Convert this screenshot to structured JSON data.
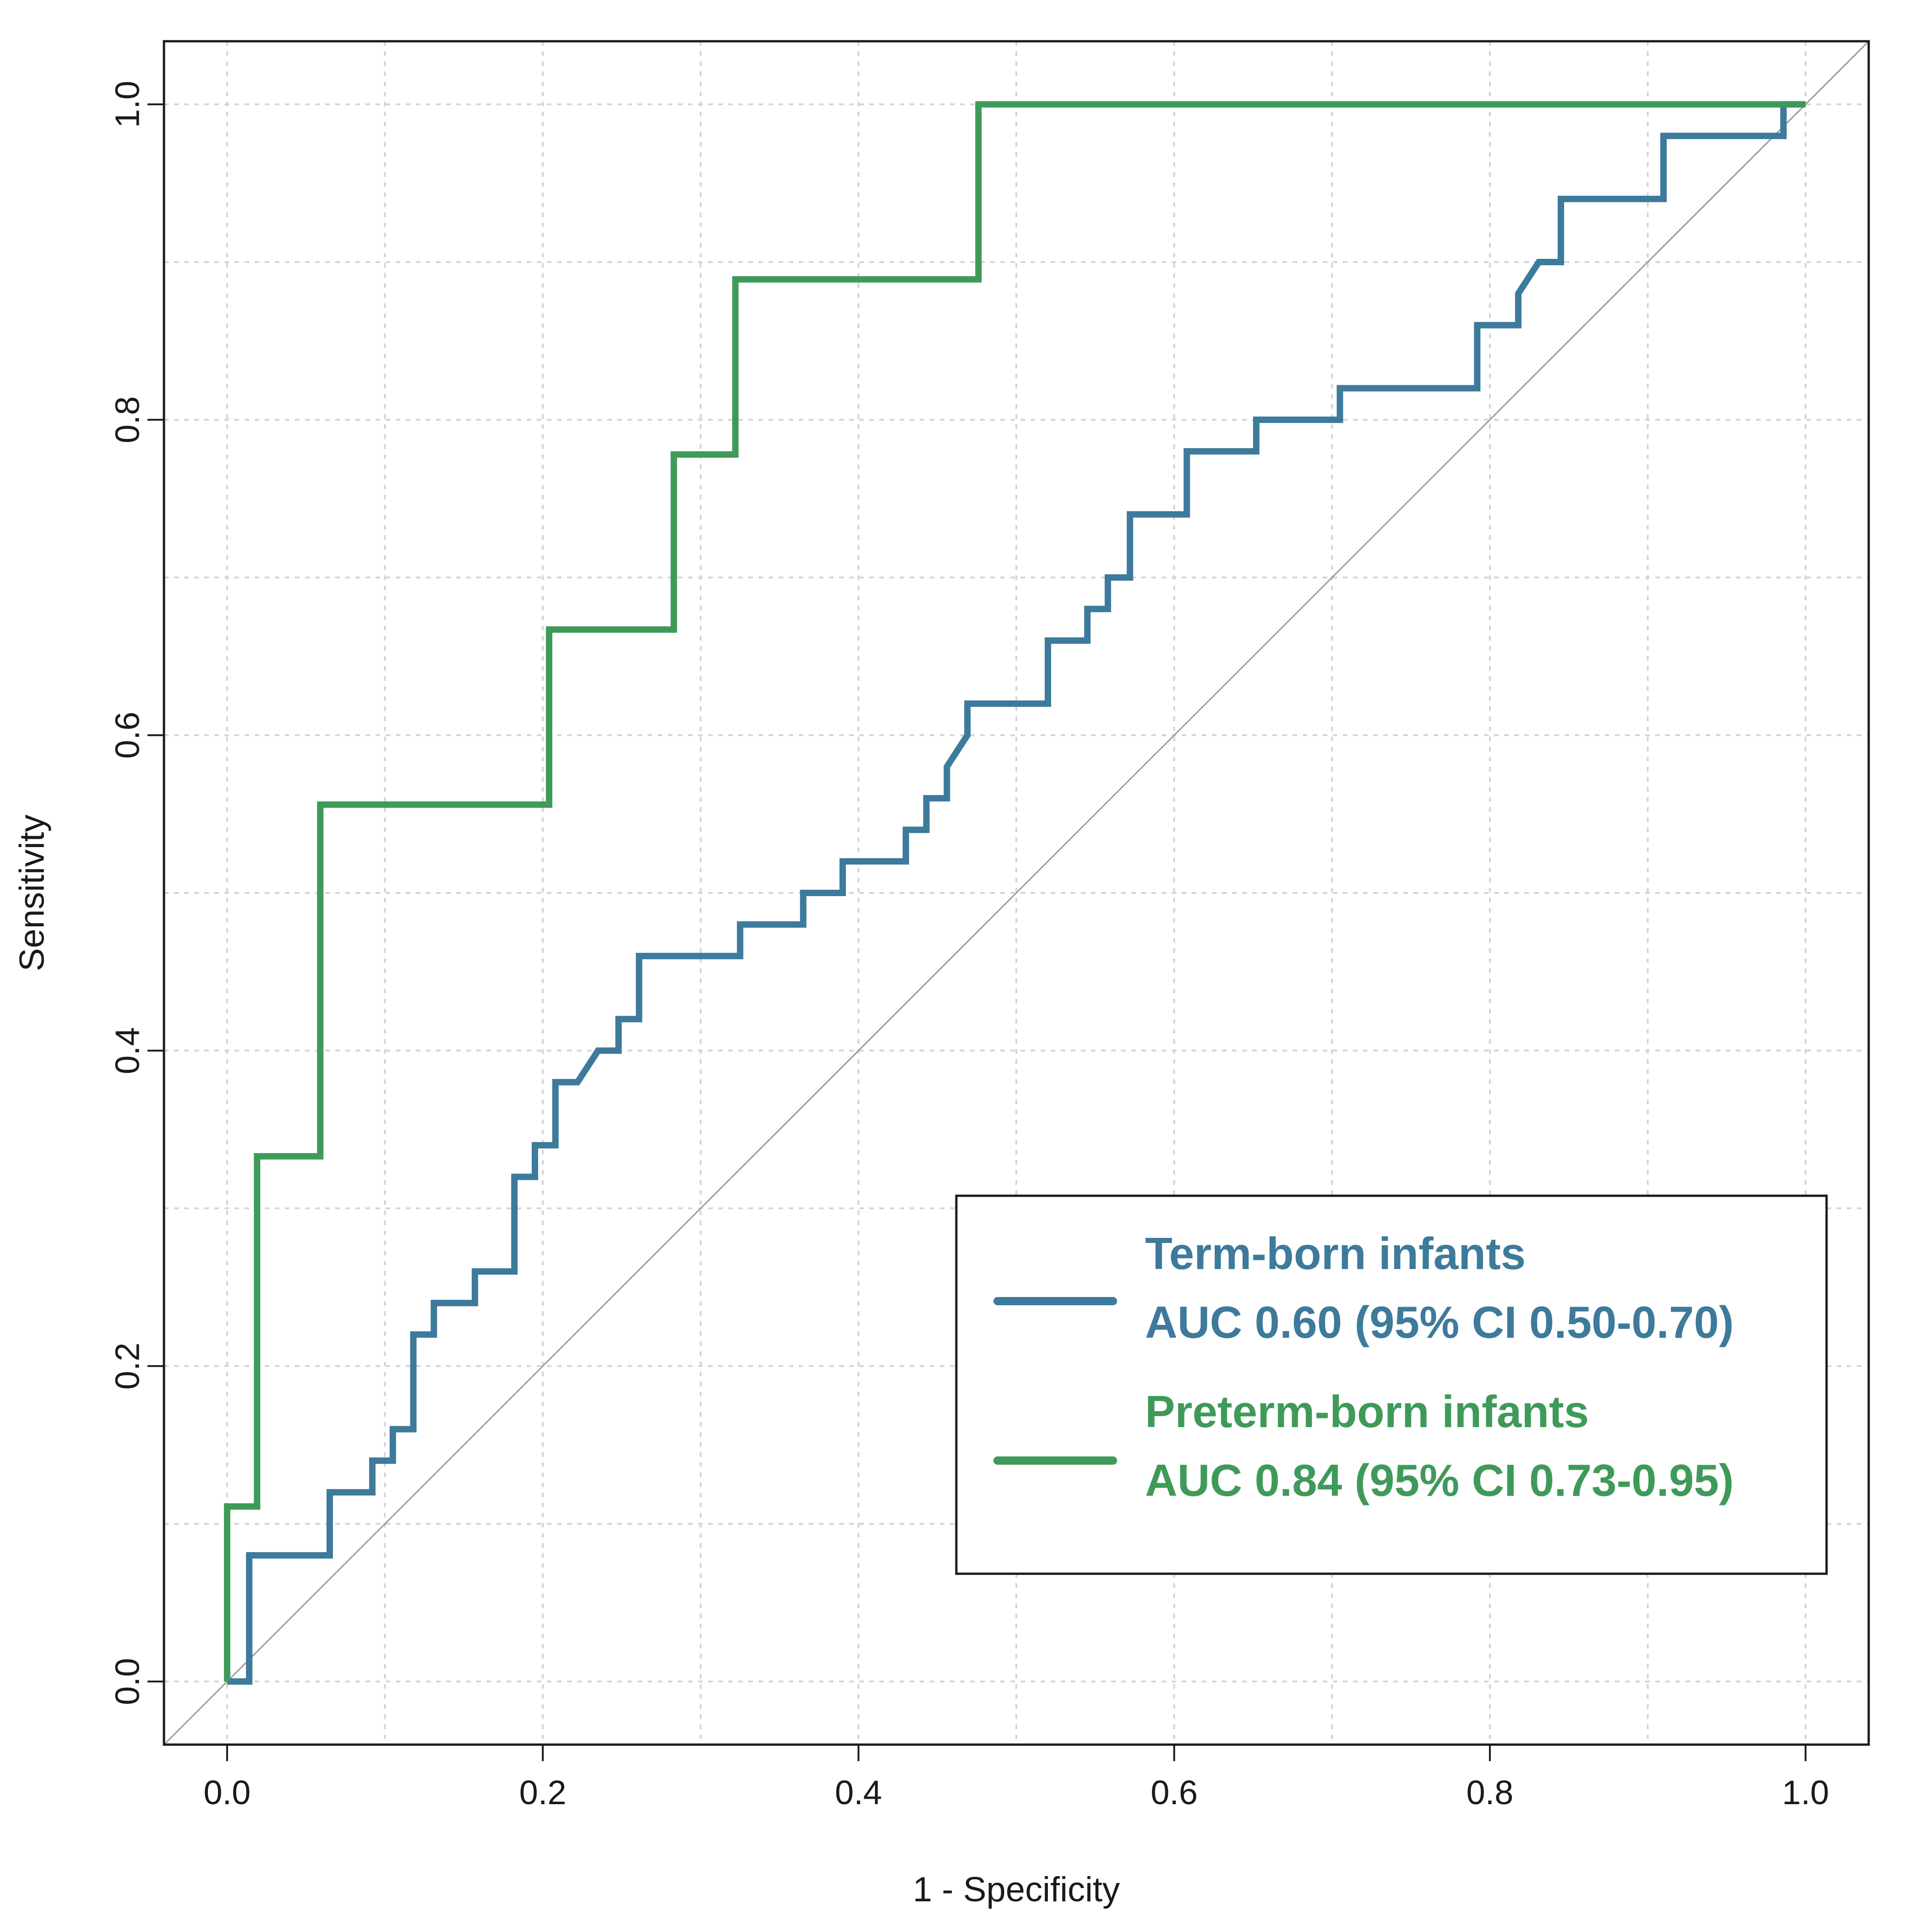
{
  "chart_data": {
    "type": "line",
    "title": "",
    "xlabel": "1 - Specificity",
    "ylabel": "Sensitivity",
    "xlim": [
      -0.04,
      1.04
    ],
    "ylim": [
      -0.04,
      1.04
    ],
    "x_ticks": [
      "0.0",
      "0.2",
      "0.4",
      "0.6",
      "0.8",
      "1.0"
    ],
    "y_ticks": [
      "0.0",
      "0.2",
      "0.4",
      "0.6",
      "0.8",
      "1.0"
    ],
    "grid": true,
    "grid_style": "dotted",
    "diagonal_reference_line": true,
    "legend_position": "bottom-right",
    "series": [
      {
        "name": "Term-born infants",
        "legend_line2": "AUC 0.60 (95% CI 0.50-0.70)",
        "color": "#3d7a9c",
        "points": [
          [
            0,
            0
          ],
          [
            0.014,
            0
          ],
          [
            0.014,
            0.08
          ],
          [
            0.065,
            0.08
          ],
          [
            0.065,
            0.12
          ],
          [
            0.092,
            0.12
          ],
          [
            0.092,
            0.14
          ],
          [
            0.105,
            0.14
          ],
          [
            0.105,
            0.16
          ],
          [
            0.118,
            0.16
          ],
          [
            0.118,
            0.22
          ],
          [
            0.131,
            0.22
          ],
          [
            0.131,
            0.24
          ],
          [
            0.157,
            0.24
          ],
          [
            0.157,
            0.26
          ],
          [
            0.182,
            0.26
          ],
          [
            0.182,
            0.32
          ],
          [
            0.195,
            0.32
          ],
          [
            0.195,
            0.34
          ],
          [
            0.208,
            0.34
          ],
          [
            0.208,
            0.38
          ],
          [
            0.222,
            0.38
          ],
          [
            0.235,
            0.4
          ],
          [
            0.248,
            0.4
          ],
          [
            0.248,
            0.42
          ],
          [
            0.261,
            0.42
          ],
          [
            0.261,
            0.46
          ],
          [
            0.325,
            0.46
          ],
          [
            0.325,
            0.48
          ],
          [
            0.365,
            0.48
          ],
          [
            0.365,
            0.5
          ],
          [
            0.39,
            0.5
          ],
          [
            0.39,
            0.52
          ],
          [
            0.43,
            0.52
          ],
          [
            0.43,
            0.54
          ],
          [
            0.443,
            0.54
          ],
          [
            0.443,
            0.56
          ],
          [
            0.456,
            0.56
          ],
          [
            0.456,
            0.58
          ],
          [
            0.469,
            0.6
          ],
          [
            0.469,
            0.62
          ],
          [
            0.52,
            0.62
          ],
          [
            0.52,
            0.66
          ],
          [
            0.545,
            0.66
          ],
          [
            0.545,
            0.68
          ],
          [
            0.558,
            0.68
          ],
          [
            0.558,
            0.7
          ],
          [
            0.572,
            0.7
          ],
          [
            0.572,
            0.74
          ],
          [
            0.608,
            0.74
          ],
          [
            0.608,
            0.78
          ],
          [
            0.652,
            0.78
          ],
          [
            0.652,
            0.8
          ],
          [
            0.705,
            0.8
          ],
          [
            0.705,
            0.82
          ],
          [
            0.792,
            0.82
          ],
          [
            0.792,
            0.86
          ],
          [
            0.818,
            0.86
          ],
          [
            0.818,
            0.88
          ],
          [
            0.831,
            0.9
          ],
          [
            0.845,
            0.9
          ],
          [
            0.845,
            0.94
          ],
          [
            0.91,
            0.94
          ],
          [
            0.91,
            0.98
          ],
          [
            0.986,
            0.98
          ],
          [
            0.986,
            1.0
          ],
          [
            1.0,
            1.0
          ]
        ]
      },
      {
        "name": "Preterm-born infants",
        "legend_line2": "AUC 0.84 (95% CI 0.73-0.95)",
        "color": "#3f9a5a",
        "points": [
          [
            0,
            0
          ],
          [
            0,
            0.111
          ],
          [
            0.019,
            0.111
          ],
          [
            0.019,
            0.333
          ],
          [
            0.059,
            0.333
          ],
          [
            0.059,
            0.556
          ],
          [
            0.204,
            0.556
          ],
          [
            0.204,
            0.667
          ],
          [
            0.283,
            0.667
          ],
          [
            0.283,
            0.778
          ],
          [
            0.322,
            0.778
          ],
          [
            0.322,
            0.889
          ],
          [
            0.476,
            0.889
          ],
          [
            0.476,
            1.0
          ],
          [
            1.0,
            1.0
          ]
        ]
      }
    ]
  }
}
